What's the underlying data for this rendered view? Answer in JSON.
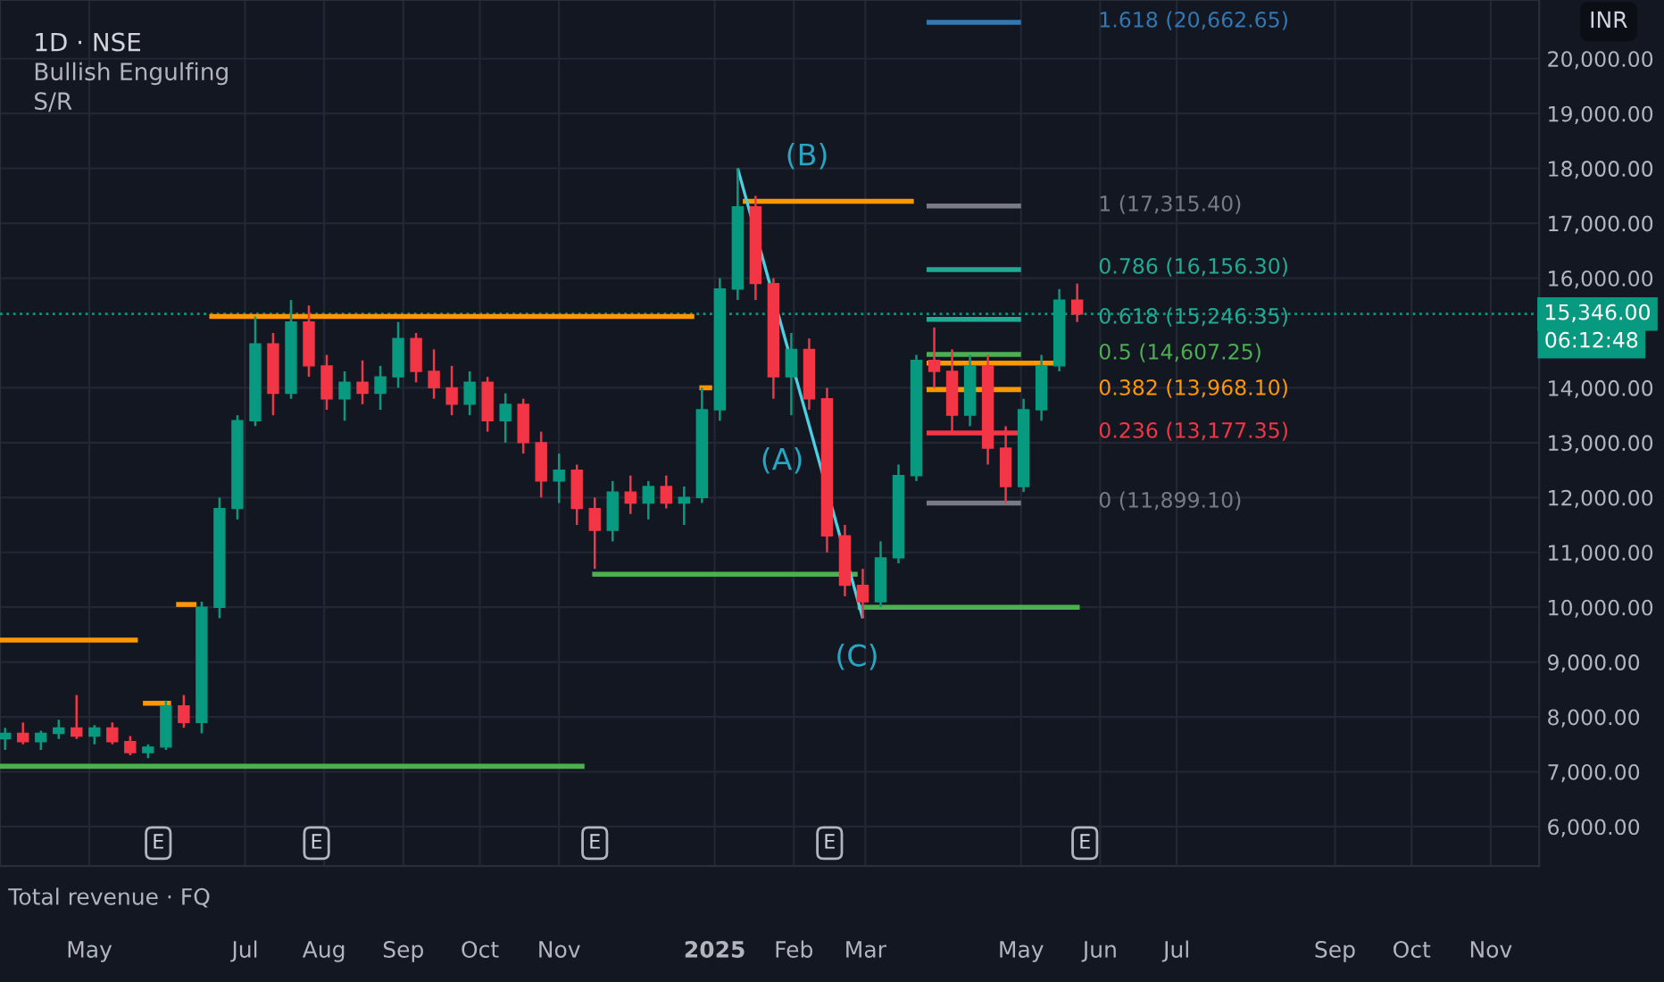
{
  "chart_data": {
    "type": "candlestick",
    "title": "1D · NSE",
    "x": [
      "2024-03-29",
      "2024-04-05",
      "2024-04-12",
      "2024-04-19",
      "2024-04-26",
      "2024-05-03",
      "2024-05-10",
      "2024-05-17",
      "2024-05-24",
      "2024-05-31",
      "2024-06-07",
      "2024-06-14",
      "2024-06-21",
      "2024-06-28",
      "2024-07-05",
      "2024-07-12",
      "2024-07-19",
      "2024-07-26",
      "2024-08-02",
      "2024-08-09",
      "2024-08-16",
      "2024-08-23",
      "2024-08-30",
      "2024-09-06",
      "2024-09-13",
      "2024-09-20",
      "2024-09-27",
      "2024-10-04",
      "2024-10-11",
      "2024-10-18",
      "2024-10-25",
      "2024-11-01",
      "2024-11-08",
      "2024-11-15",
      "2024-11-22",
      "2024-11-29",
      "2024-12-06",
      "2024-12-13",
      "2024-12-20",
      "2024-12-27",
      "2025-01-03",
      "2025-01-10",
      "2025-01-17",
      "2025-01-24",
      "2025-01-31",
      "2025-02-07",
      "2025-02-14",
      "2025-02-21",
      "2025-02-28",
      "2025-03-07",
      "2025-03-14",
      "2025-03-21",
      "2025-03-28",
      "2025-04-04",
      "2025-04-11",
      "2025-04-18",
      "2025-04-25",
      "2025-05-02",
      "2025-05-09",
      "2025-05-16",
      "2025-05-23"
    ],
    "ohlc": [
      [
        7600,
        7800,
        7400,
        7700
      ],
      [
        7700,
        7900,
        7500,
        7550
      ],
      [
        7550,
        7750,
        7400,
        7700
      ],
      [
        7700,
        7950,
        7600,
        7800
      ],
      [
        7800,
        8400,
        7600,
        7650
      ],
      [
        7650,
        7850,
        7500,
        7800
      ],
      [
        7800,
        7900,
        7500,
        7550
      ],
      [
        7550,
        7650,
        7300,
        7350
      ],
      [
        7350,
        7500,
        7250,
        7450
      ],
      [
        7450,
        8300,
        7400,
        8200
      ],
      [
        8200,
        8400,
        7800,
        7900
      ],
      [
        7900,
        10100,
        7700,
        10000
      ],
      [
        10000,
        12000,
        9800,
        11800
      ],
      [
        11800,
        13500,
        11600,
        13400
      ],
      [
        13400,
        15300,
        13300,
        14800
      ],
      [
        14800,
        15000,
        13500,
        13900
      ],
      [
        13900,
        15600,
        13800,
        15200
      ],
      [
        15200,
        15500,
        14200,
        14400
      ],
      [
        14400,
        14600,
        13600,
        13800
      ],
      [
        13800,
        14300,
        13400,
        14100
      ],
      [
        14100,
        14500,
        13700,
        13900
      ],
      [
        13900,
        14400,
        13600,
        14200
      ],
      [
        14200,
        15200,
        14000,
        14900
      ],
      [
        14900,
        15000,
        14100,
        14300
      ],
      [
        14300,
        14700,
        13800,
        14000
      ],
      [
        14000,
        14400,
        13500,
        13700
      ],
      [
        13700,
        14300,
        13500,
        14100
      ],
      [
        14100,
        14200,
        13200,
        13400
      ],
      [
        13400,
        13900,
        13000,
        13700
      ],
      [
        13700,
        13800,
        12800,
        13000
      ],
      [
        13000,
        13200,
        12000,
        12300
      ],
      [
        12300,
        12800,
        11900,
        12500
      ],
      [
        12500,
        12600,
        11500,
        11800
      ],
      [
        11800,
        12000,
        10700,
        11400
      ],
      [
        11400,
        12300,
        11200,
        12100
      ],
      [
        12100,
        12400,
        11700,
        11900
      ],
      [
        11900,
        12300,
        11600,
        12200
      ],
      [
        12200,
        12400,
        11800,
        11900
      ],
      [
        11900,
        12200,
        11500,
        12000
      ],
      [
        12000,
        14000,
        11900,
        13600
      ],
      [
        13600,
        16000,
        13400,
        15800
      ],
      [
        15800,
        18000,
        15600,
        17300
      ],
      [
        17300,
        17500,
        15600,
        15900
      ],
      [
        15900,
        16000,
        13800,
        14200
      ],
      [
        14200,
        15000,
        13500,
        14700
      ],
      [
        14700,
        14900,
        13600,
        13800
      ],
      [
        13800,
        14000,
        11000,
        11300
      ],
      [
        11300,
        11500,
        10200,
        10400
      ],
      [
        10400,
        10700,
        9800,
        10100
      ],
      [
        10100,
        11200,
        10000,
        10900
      ],
      [
        10900,
        12600,
        10800,
        12400
      ],
      [
        12400,
        14600,
        12300,
        14500
      ],
      [
        14500,
        15100,
        14000,
        14300
      ],
      [
        14300,
        14700,
        13200,
        13500
      ],
      [
        13500,
        14600,
        13300,
        14400
      ],
      [
        14400,
        14600,
        12600,
        12900
      ],
      [
        12900,
        13300,
        11900,
        12200
      ],
      [
        12200,
        13800,
        12100,
        13600
      ],
      [
        13600,
        14600,
        13400,
        14400
      ],
      [
        14400,
        15800,
        14300,
        15600
      ],
      [
        15600,
        15900,
        15200,
        15346
      ]
    ],
    "colors": [
      "#089981",
      "#f23645",
      "#089981",
      "#089981",
      "#f23645",
      "#089981",
      "#f23645",
      "#f23645",
      "#089981",
      "#089981",
      "#f23645",
      "#089981",
      "#089981",
      "#089981",
      "#089981",
      "#f23645",
      "#089981",
      "#f23645",
      "#f23645",
      "#089981",
      "#f23645",
      "#089981",
      "#089981",
      "#f23645",
      "#f23645",
      "#f23645",
      "#089981",
      "#f23645",
      "#089981",
      "#f23645",
      "#f23645",
      "#089981",
      "#f23645",
      "#f23645",
      "#089981",
      "#f23645",
      "#089981",
      "#f23645",
      "#089981",
      "#089981",
      "#089981",
      "#089981",
      "#f23645",
      "#f23645",
      "#089981",
      "#f23645",
      "#f23645",
      "#f23645",
      "#f23645",
      "#089981",
      "#089981",
      "#089981",
      "#f23645",
      "#f23645",
      "#089981",
      "#f23645",
      "#f23645",
      "#089981",
      "#089981",
      "#089981",
      "#f23645"
    ],
    "series": [
      {
        "type": "line",
        "color": "#ff9800",
        "x": [
          "2024-03-27",
          "2024-05-20"
        ],
        "values": [
          9400,
          9400
        ]
      },
      {
        "type": "line",
        "color": "#ff9800",
        "x": [
          "2024-05-22",
          "2024-06-02"
        ],
        "values": [
          8250,
          8250
        ]
      },
      {
        "type": "line",
        "color": "#ff9800",
        "x": [
          "2024-06-04",
          "2024-06-12"
        ],
        "values": [
          10050,
          10050
        ]
      },
      {
        "type": "line",
        "color": "#ff9800",
        "x": [
          "2024-06-17",
          "2024-12-24"
        ],
        "values": [
          15300,
          15300
        ]
      },
      {
        "type": "line",
        "color": "#ff9800",
        "x": [
          "2024-12-26",
          "2024-12-31"
        ],
        "values": [
          14000,
          14000
        ]
      },
      {
        "type": "line",
        "color": "#ff9800",
        "x": [
          "2025-01-12",
          "2025-03-20"
        ],
        "values": [
          17400,
          17400
        ]
      },
      {
        "type": "line",
        "color": "#ff9800",
        "x": [
          "2025-03-25",
          "2025-05-14"
        ],
        "values": [
          14450,
          14450
        ]
      },
      {
        "type": "line",
        "color": "#4caf50",
        "x": [
          "2024-03-27",
          "2024-11-11"
        ],
        "values": [
          7100,
          7100
        ]
      },
      {
        "type": "line",
        "color": "#4caf50",
        "x": [
          "2024-11-14",
          "2025-02-26"
        ],
        "values": [
          10600,
          10600
        ]
      },
      {
        "type": "line",
        "color": "#4caf50",
        "x": [
          "2025-02-26",
          "2025-05-24"
        ],
        "values": [
          10000,
          10000
        ]
      },
      {
        "type": "line",
        "color": "#4dd0e1",
        "x": [
          "2025-01-10",
          "2025-02-28"
        ],
        "values": [
          18000,
          9800
        ]
      },
      {
        "type": "line",
        "color": "#3179b5",
        "x": [
          "2025-03-25",
          "2025-05-01"
        ],
        "values": [
          20662.65,
          20662.65
        ]
      },
      {
        "type": "line",
        "color": "#787b86",
        "x": [
          "2025-03-25",
          "2025-05-01"
        ],
        "values": [
          17315.4,
          17315.4
        ]
      },
      {
        "type": "line",
        "color": "#22ab94",
        "x": [
          "2025-03-25",
          "2025-05-01"
        ],
        "values": [
          16156.3,
          16156.3
        ]
      },
      {
        "type": "line",
        "color": "#22ab94",
        "x": [
          "2025-03-25",
          "2025-05-01"
        ],
        "values": [
          15246.35,
          15246.35
        ]
      },
      {
        "type": "line",
        "color": "#4caf50",
        "x": [
          "2025-03-25",
          "2025-05-01"
        ],
        "values": [
          14607.25,
          14607.25
        ]
      },
      {
        "type": "line",
        "color": "#ff9800",
        "x": [
          "2025-03-25",
          "2025-05-01"
        ],
        "values": [
          13968.1,
          13968.1
        ]
      },
      {
        "type": "line",
        "color": "#f23645",
        "x": [
          "2025-03-25",
          "2025-05-01"
        ],
        "values": [
          13177.35,
          13177.35
        ]
      },
      {
        "type": "line",
        "color": "#787b86",
        "x": [
          "2025-03-25",
          "2025-05-01"
        ],
        "values": [
          11899.1,
          11899.1
        ]
      }
    ],
    "annotations": [
      "Bullish Engulfing",
      "S/R",
      "Total revenue · FQ",
      "INR",
      "06:12:48",
      "1.618 (20,662.65)",
      "1 (17,315.40)",
      "0.786 (16,156.30)",
      "0.618 (15,246.35)",
      "0.5 (14,607.25)",
      "0.382 (13,968.10)",
      "0.236 (13,177.35)",
      "0 (11,899.10)",
      "(B)",
      "(A)",
      "(C)",
      {
        "text": "E",
        "x": "2024-05-28",
        "y": 5700
      },
      {
        "text": "E",
        "x": "2024-07-29",
        "y": 5700
      },
      {
        "text": "E",
        "x": "2024-11-15",
        "y": 5700
      },
      {
        "text": "E",
        "x": "2025-02-15",
        "y": 5700
      },
      {
        "text": "E",
        "x": "2025-05-26",
        "y": 5700
      }
    ],
    "ref_lines": [
      {
        "axis": "y",
        "value": 15346,
        "label": "15,346.00",
        "color": "#089981",
        "line_style": "dotted"
      }
    ],
    "xlim": [
      "2024-03-27",
      "2025-11-20"
    ],
    "xticks": [
      {
        "value": "2024-05-01",
        "label": "May"
      },
      {
        "value": "2024-07-01",
        "label": "Jul"
      },
      {
        "value": "2024-08-01",
        "label": "Aug"
      },
      {
        "value": "2024-09-01",
        "label": "Sep"
      },
      {
        "value": "2024-10-01",
        "label": "Oct"
      },
      {
        "value": "2024-11-01",
        "label": "Nov"
      },
      {
        "value": "2025-01-01",
        "label": "2025"
      },
      {
        "value": "2025-02-01",
        "label": "Feb"
      },
      {
        "value": "2025-03-01",
        "label": "Mar"
      },
      {
        "value": "2025-05-01",
        "label": "May"
      },
      {
        "value": "2025-06-01",
        "label": "Jun"
      },
      {
        "value": "2025-07-01",
        "label": "Jul"
      },
      {
        "value": "2025-09-01",
        "label": "Sep"
      },
      {
        "value": "2025-10-01",
        "label": "Oct"
      },
      {
        "value": "2025-11-01",
        "label": "Nov"
      }
    ],
    "ylim": [
      5280,
      21070
    ],
    "yticks": [
      {
        "value": 6000,
        "label": "6,000.00"
      },
      {
        "value": 7000,
        "label": "7,000.00"
      },
      {
        "value": 8000,
        "label": "8,000.00"
      },
      {
        "value": 9000,
        "label": "9,000.00"
      },
      {
        "value": 10000,
        "label": "10,000.00"
      },
      {
        "value": 11000,
        "label": "11,000.00"
      },
      {
        "value": 12000,
        "label": "12,000.00"
      },
      {
        "value": 13000,
        "label": "13,000.00"
      },
      {
        "value": 14000,
        "label": "14,000.00"
      },
      {
        "value": 16000,
        "label": "16,000.00"
      },
      {
        "value": 17000,
        "label": "17,000.00"
      },
      {
        "value": 18000,
        "label": "18,000.00"
      },
      {
        "value": 19000,
        "label": "19,000.00"
      },
      {
        "value": 20000,
        "label": "20,000.00"
      }
    ],
    "grid": true
  }
}
